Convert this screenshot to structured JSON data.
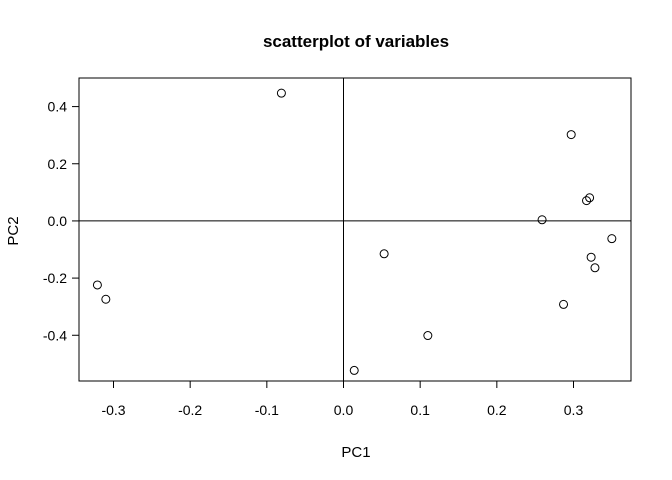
{
  "chart_data": {
    "type": "scatter",
    "title": "scatterplot of variables",
    "xlabel": "PC1",
    "ylabel": "PC2",
    "xlim": [
      -0.345,
      0.375
    ],
    "ylim": [
      -0.56,
      0.5
    ],
    "xticks": [
      -0.3,
      -0.2,
      -0.1,
      0.0,
      0.1,
      0.2,
      0.3
    ],
    "xtick_labels": [
      "-0.3",
      "-0.2",
      "-0.1",
      "0.0",
      "0.1",
      "0.2",
      "0.3"
    ],
    "yticks": [
      -0.4,
      -0.2,
      0.0,
      0.2,
      0.4
    ],
    "ytick_labels": [
      "-0.4",
      "-0.2",
      "0.0",
      "0.2",
      "0.4"
    ],
    "reference_lines": {
      "x": 0,
      "y": 0
    },
    "grid": false,
    "marker": "open-circle",
    "points": [
      {
        "x": -0.081,
        "y": 0.447
      },
      {
        "x": 0.297,
        "y": 0.302
      },
      {
        "x": 0.321,
        "y": 0.081
      },
      {
        "x": 0.317,
        "y": 0.071
      },
      {
        "x": 0.259,
        "y": 0.004
      },
      {
        "x": 0.35,
        "y": -0.062
      },
      {
        "x": 0.053,
        "y": -0.115
      },
      {
        "x": 0.323,
        "y": -0.127
      },
      {
        "x": 0.328,
        "y": -0.164
      },
      {
        "x": -0.321,
        "y": -0.224
      },
      {
        "x": -0.31,
        "y": -0.274
      },
      {
        "x": 0.287,
        "y": -0.292
      },
      {
        "x": 0.11,
        "y": -0.401
      },
      {
        "x": 0.014,
        "y": -0.523
      }
    ]
  },
  "colors": {
    "background": "#ffffff",
    "foreground": "#000000"
  }
}
